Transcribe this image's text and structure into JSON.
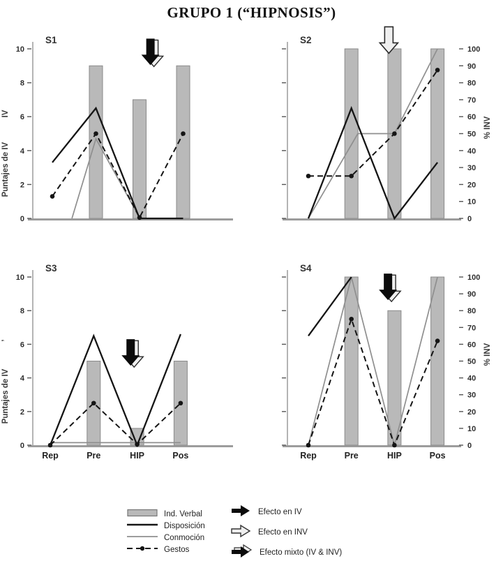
{
  "title": "GRUPO 1 (“HIPNOSIS”)",
  "axes_shared": {
    "x_categories": [
      "Rep",
      "Pre",
      "HIP",
      "Pos"
    ],
    "left_axis_title": "Puntajes de IV",
    "right_axis_title": "% INV",
    "left_range": [
      0,
      10
    ],
    "right_range": [
      0,
      100
    ]
  },
  "chart_data": [
    {
      "id": "S1",
      "type": "bar+line",
      "categories": [
        "Rep",
        "Pre",
        "HIP",
        "Pos"
      ],
      "y_left": {
        "title": "Puntajes de IV",
        "title_extra": "IV",
        "range": [
          0,
          10
        ],
        "ticks": [
          0,
          2,
          4,
          6,
          8,
          10
        ],
        "show_labels": true
      },
      "y_right": null,
      "show_x_labels": false,
      "bars": {
        "name": "Ind. Verbal",
        "values": [
          null,
          9,
          7,
          9
        ]
      },
      "lines": [
        {
          "name": "Disposición",
          "style": "black",
          "points": [
            [
              0,
              3.3
            ],
            [
              1,
              6.5
            ],
            [
              2,
              0
            ],
            [
              3,
              0
            ]
          ]
        },
        {
          "name": "Conmoción",
          "style": "gray",
          "points": [
            [
              0.45,
              0
            ],
            [
              1,
              4.7
            ],
            [
              2,
              0.05
            ]
          ]
        },
        {
          "name": "Gestos",
          "style": "dashed-dot",
          "points": [
            [
              0,
              1.3
            ],
            [
              1,
              5
            ],
            [
              2,
              0.05
            ],
            [
              3,
              5
            ]
          ]
        }
      ],
      "effect_arrow": {
        "kind": "mixto",
        "label": "Efecto mixto (IV & INV)",
        "at_category": "HIP",
        "cx": 2.25,
        "top_value": 10.6
      }
    },
    {
      "id": "S2",
      "type": "bar+line",
      "categories": [
        "Rep",
        "Pre",
        "HIP",
        "Pos"
      ],
      "y_left": {
        "title": null,
        "range": [
          0,
          100
        ],
        "ticks": [
          0,
          20,
          40,
          60,
          80,
          100
        ],
        "show_labels": false
      },
      "y_right": {
        "title": "% INV",
        "range": [
          0,
          100
        ],
        "ticks": [
          0,
          10,
          20,
          30,
          40,
          50,
          60,
          70,
          80,
          90,
          100
        ],
        "show_labels": true
      },
      "show_x_labels": false,
      "bars": {
        "name": "Ind. Verbal",
        "values": [
          null,
          100,
          100,
          100
        ]
      },
      "lines": [
        {
          "name": "Disposición",
          "style": "black",
          "points": [
            [
              0,
              0
            ],
            [
              1,
              65
            ],
            [
              2,
              0
            ],
            [
              3,
              33
            ]
          ]
        },
        {
          "name": "Conmoción",
          "style": "gray",
          "points": [
            [
              0,
              0
            ],
            [
              1.15,
              50
            ],
            [
              2,
              50
            ],
            [
              3,
              100
            ]
          ]
        },
        {
          "name": "Gestos",
          "style": "dashed-dot",
          "points": [
            [
              0,
              25
            ],
            [
              1,
              25
            ],
            [
              2,
              50
            ],
            [
              3,
              87.5
            ]
          ]
        }
      ],
      "effect_arrow": {
        "kind": "inv",
        "label": "Efecto en INV",
        "at_category": "HIP",
        "cx": 1.87,
        "top_value": 113
      }
    },
    {
      "id": "S3",
      "type": "bar+line",
      "categories": [
        "Rep",
        "Pre",
        "HIP",
        "Pos"
      ],
      "y_left": {
        "title": "Puntajes de IV",
        "title_extra": "ʼ",
        "range": [
          0,
          10
        ],
        "ticks": [
          0,
          2,
          4,
          6,
          8,
          10
        ],
        "show_labels": true
      },
      "y_right": null,
      "show_x_labels": true,
      "bars": {
        "name": "Ind. Verbal",
        "values": [
          null,
          5,
          1,
          5
        ]
      },
      "lines": [
        {
          "name": "Disposición",
          "style": "black",
          "points": [
            [
              0,
              0
            ],
            [
              1,
              6.5
            ],
            [
              2,
              0
            ],
            [
              3,
              6.6
            ]
          ]
        },
        {
          "name": "Conmoción",
          "style": "gray",
          "points": [
            [
              0,
              0.15
            ],
            [
              3,
              0.15
            ]
          ]
        },
        {
          "name": "Gestos",
          "style": "dashed-dot",
          "points": [
            [
              0,
              0
            ],
            [
              1,
              2.5
            ],
            [
              2,
              0.05
            ],
            [
              3,
              2.5
            ]
          ]
        }
      ],
      "effect_arrow": {
        "kind": "mixto",
        "label": "Efecto mixto (IV & INV)",
        "at_category": "HIP",
        "cx": 1.85,
        "top_value": 6.3
      }
    },
    {
      "id": "S4",
      "type": "bar+line",
      "categories": [
        "Rep",
        "Pre",
        "HIP",
        "Pos"
      ],
      "y_left": {
        "title": null,
        "range": [
          0,
          100
        ],
        "ticks": [
          0,
          20,
          40,
          60,
          80,
          100
        ],
        "show_labels": false
      },
      "y_right": {
        "title": "% INV",
        "range": [
          0,
          100
        ],
        "ticks": [
          0,
          10,
          20,
          30,
          40,
          50,
          60,
          70,
          80,
          90,
          100
        ],
        "show_labels": true
      },
      "show_x_labels": true,
      "bars": {
        "name": "Ind. Verbal",
        "values": [
          null,
          100,
          80,
          100
        ]
      },
      "lines": [
        {
          "name": "Disposición",
          "style": "black",
          "points": [
            [
              0,
              65
            ],
            [
              1,
              100
            ]
          ]
        },
        {
          "name": "Conmoción",
          "style": "gray",
          "points": [
            [
              0,
              0
            ],
            [
              1,
              100
            ],
            [
              2,
              0
            ],
            [
              3,
              100
            ]
          ]
        },
        {
          "name": "Gestos",
          "style": "dashed-dot",
          "points": [
            [
              0,
              0
            ],
            [
              1,
              75
            ],
            [
              2,
              0
            ],
            [
              3,
              62
            ]
          ]
        }
      ],
      "effect_arrow": {
        "kind": "mixto",
        "label": "Efecto mixto (IV & INV)",
        "at_category": "HIP",
        "cx": 1.85,
        "top_value": 102
      }
    }
  ],
  "legend": {
    "series": [
      {
        "label": "Ind. Verbal",
        "swatch": "bar"
      },
      {
        "label": "Disposición",
        "swatch": "line-black"
      },
      {
        "label": "Conmoción",
        "swatch": "line-gray"
      },
      {
        "label": "Gestos",
        "swatch": "line-dashed-dot"
      }
    ],
    "effects": [
      {
        "label": "Efecto en IV",
        "arrow": "black"
      },
      {
        "label": "Efecto en INV",
        "arrow": "white"
      },
      {
        "label": "Efecto mixto (IV & INV)",
        "arrow": "mixto"
      }
    ]
  },
  "colors": {
    "bar_fill": "#b9b9b9",
    "bar_border": "#8a8a8a",
    "line_black": "#151515",
    "line_gray": "#8f8f8f",
    "axis": "#9c9c9c",
    "text": "#222222",
    "arrow_white_fill": "#efefef"
  }
}
